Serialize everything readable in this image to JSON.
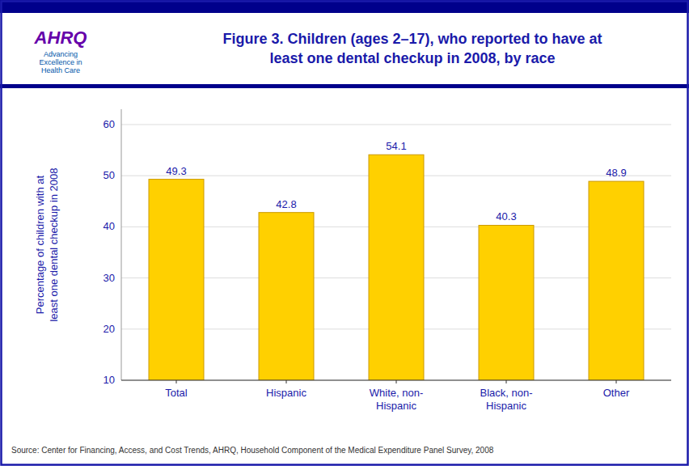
{
  "chart_data": {
    "type": "bar",
    "title": "Figure 3. Children (ages 2–17), who reported to have at\nleast one dental checkup in 2008, by race",
    "categories": [
      "Total",
      "Hispanic",
      "White, non-\nHispanic",
      "Black, non-\nHispanic",
      "Other"
    ],
    "values": [
      49.3,
      42.8,
      54.1,
      40.3,
      48.9
    ],
    "color": "#FFD000",
    "y_label": "Percentage of children with at\nleast one dental checkup in 2008",
    "ylim": [
      10,
      63
    ],
    "yticks": [
      10,
      20,
      30,
      40,
      50,
      60
    ],
    "grid": true,
    "data_labels": true,
    "annotations": [
      "Source: Center for Financing, Access, and Cost Trends, AHRQ,  Household Component of the Medical Expenditure Panel Survey, 2008",
      "AHRQ",
      "Advancing\nExcellence in\nHealth Care"
    ]
  }
}
